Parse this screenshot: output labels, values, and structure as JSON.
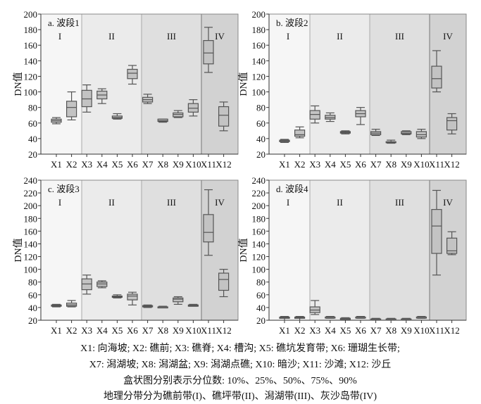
{
  "chart_data": [
    {
      "type": "box",
      "title": "a. 波段1",
      "ylabel": "DN值",
      "ylim": [
        20,
        200
      ],
      "yticks": [
        20,
        40,
        60,
        80,
        100,
        120,
        140,
        160,
        180,
        200
      ],
      "categories": [
        "X1",
        "X2",
        "X3",
        "X4",
        "X5",
        "X6",
        "X7",
        "X8",
        "X9",
        "X10",
        "X11",
        "X12"
      ],
      "zones": [
        {
          "label": "I",
          "from": 0,
          "to": 1
        },
        {
          "label": "II",
          "from": 2,
          "to": 5
        },
        {
          "label": "III",
          "from": 6,
          "to": 9
        },
        {
          "label": "IV",
          "from": 10,
          "to": 11
        }
      ],
      "quantiles": [
        [
          59,
          61,
          63,
          65,
          67
        ],
        [
          64,
          68,
          80,
          88,
          100
        ],
        [
          74,
          81,
          91,
          102,
          109
        ],
        [
          85,
          91,
          96,
          101,
          104
        ],
        [
          65,
          66,
          67,
          69,
          72
        ],
        [
          110,
          117,
          124,
          129,
          134
        ],
        [
          85,
          87,
          90,
          93,
          97
        ],
        [
          61,
          62,
          63,
          65,
          65
        ],
        [
          67,
          68,
          71,
          73,
          76
        ],
        [
          69,
          74,
          79,
          85,
          90
        ],
        [
          125,
          136,
          150,
          166,
          183
        ],
        [
          50,
          56,
          70,
          81,
          87
        ]
      ]
    },
    {
      "type": "box",
      "title": "b. 波段2",
      "ylabel": "DN值",
      "ylim": [
        20,
        200
      ],
      "yticks": [
        20,
        40,
        60,
        80,
        100,
        120,
        140,
        160,
        180,
        200
      ],
      "categories": [
        "X1",
        "X2",
        "X3",
        "X4",
        "X5",
        "X6",
        "X7",
        "X8",
        "X9",
        "X10",
        "X11",
        "X12"
      ],
      "zones": [
        {
          "label": "I",
          "from": 0,
          "to": 1
        },
        {
          "label": "II",
          "from": 2,
          "to": 5
        },
        {
          "label": "III",
          "from": 6,
          "to": 9
        },
        {
          "label": "IV",
          "from": 10,
          "to": 11
        }
      ],
      "quantiles": [
        [
          35,
          36,
          37,
          38,
          39
        ],
        [
          41,
          43,
          45,
          51,
          55
        ],
        [
          60,
          65,
          71,
          76,
          82
        ],
        [
          62,
          65,
          67,
          70,
          73
        ],
        [
          46,
          47,
          48,
          49,
          50
        ],
        [
          58,
          68,
          72,
          76,
          80
        ],
        [
          44,
          45,
          47,
          49,
          52
        ],
        [
          34,
          35,
          35,
          36,
          38
        ],
        [
          45,
          46,
          47,
          49,
          50
        ],
        [
          40,
          42,
          45,
          49,
          52
        ],
        [
          100,
          105,
          117,
          133,
          153
        ],
        [
          46,
          51,
          63,
          67,
          72
        ]
      ]
    },
    {
      "type": "box",
      "title": "c. 波段3",
      "ylabel": "DN值",
      "ylim": [
        20,
        240
      ],
      "yticks": [
        20,
        40,
        60,
        80,
        100,
        120,
        140,
        160,
        180,
        200,
        220,
        240
      ],
      "categories": [
        "X1",
        "X2",
        "X3",
        "X4",
        "X5",
        "X6",
        "X7",
        "X8",
        "X9",
        "X10",
        "X11",
        "X12"
      ],
      "zones": [
        {
          "label": "I",
          "from": 0,
          "to": 1
        },
        {
          "label": "II",
          "from": 2,
          "to": 5
        },
        {
          "label": "III",
          "from": 6,
          "to": 9
        },
        {
          "label": "IV",
          "from": 10,
          "to": 11
        }
      ],
      "quantiles": [
        [
          41,
          42,
          43,
          44,
          45
        ],
        [
          41,
          42,
          44,
          47,
          51
        ],
        [
          61,
          68,
          77,
          85,
          91
        ],
        [
          71,
          73,
          77,
          80,
          82
        ],
        [
          55,
          56,
          57,
          58,
          60
        ],
        [
          44,
          52,
          58,
          61,
          64
        ],
        [
          40,
          41,
          42,
          43,
          44
        ],
        [
          40,
          40,
          41,
          41,
          42
        ],
        [
          45,
          49,
          53,
          55,
          57
        ],
        [
          42,
          42,
          43,
          44,
          45
        ],
        [
          122,
          143,
          158,
          186,
          225
        ],
        [
          57,
          67,
          84,
          94,
          100
        ]
      ]
    },
    {
      "type": "box",
      "title": "d. 波段4",
      "ylabel": "DN值",
      "ylim": [
        20,
        240
      ],
      "yticks": [
        20,
        40,
        60,
        80,
        100,
        120,
        140,
        160,
        180,
        200,
        220,
        240
      ],
      "categories": [
        "X1",
        "X2",
        "X3",
        "X4",
        "X5",
        "X6",
        "X7",
        "X8",
        "X9",
        "X10",
        "X11",
        "X12"
      ],
      "zones": [
        {
          "label": "I",
          "from": 0,
          "to": 1
        },
        {
          "label": "II",
          "from": 2,
          "to": 5
        },
        {
          "label": "III",
          "from": 6,
          "to": 9
        },
        {
          "label": "IV",
          "from": 10,
          "to": 11
        }
      ],
      "quantiles": [
        [
          20,
          23,
          24,
          25,
          26
        ],
        [
          20,
          23,
          24,
          25,
          26
        ],
        [
          29,
          32,
          36,
          41,
          51
        ],
        [
          23,
          24,
          25,
          25,
          26
        ],
        [
          21,
          22,
          23,
          23,
          24
        ],
        [
          23,
          24,
          25,
          25,
          26
        ],
        [
          20,
          21,
          22,
          22,
          23
        ],
        [
          20,
          21,
          22,
          22,
          23
        ],
        [
          20,
          21,
          22,
          22,
          23
        ],
        [
          23,
          24,
          25,
          25,
          26
        ],
        [
          91,
          125,
          168,
          194,
          224
        ],
        [
          123,
          125,
          129,
          149,
          159
        ]
      ]
    }
  ],
  "colors": {
    "zone_I": "#f6f6f6",
    "zone_II": "#ebebeb",
    "zone_III": "#dfdfdf",
    "zone_IV": "#d2d2d2",
    "box": "#c3c3c3",
    "stroke": "#555555"
  },
  "caption": {
    "line1": "X1: 向海坡; X2: 礁前; X3: 礁脊; X4: 槽沟; X5: 礁坑发育带; X6: 珊瑚生长带;",
    "line2": "X7: 潟湖坡; X8: 潟湖盆; X9: 潟湖点礁; X10: 暗沙; X11: 沙滩; X12: 沙丘",
    "line3": "盒状图分别表示分位数: 10%、25%、50%、75%、90%",
    "line4": "地理分带分为礁前带(I)、礁坪带(II)、潟湖带(III)、灰沙岛带(IV)"
  }
}
